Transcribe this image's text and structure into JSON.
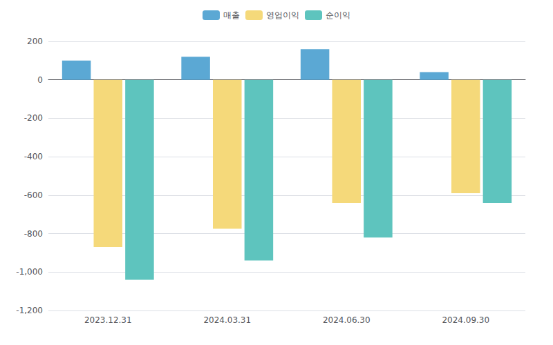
{
  "chart_data": {
    "type": "bar",
    "categories": [
      "2023.12.31",
      "2024.03.31",
      "2024.06.30",
      "2024.09.30"
    ],
    "series": [
      {
        "name": "매출",
        "color": "#5BA8D4",
        "values": [
          100,
          120,
          160,
          40
        ]
      },
      {
        "name": "영업이익",
        "color": "#F5D97A",
        "values": [
          -870,
          -775,
          -640,
          -590
        ]
      },
      {
        "name": "순이익",
        "color": "#5EC4BE",
        "values": [
          -1040,
          -940,
          -820,
          -640
        ]
      }
    ],
    "ylim": [
      -1200,
      200
    ],
    "yticks": [
      -1200,
      -1000,
      -800,
      -600,
      -400,
      -200,
      0,
      200
    ],
    "grid": true,
    "legend": "top"
  }
}
